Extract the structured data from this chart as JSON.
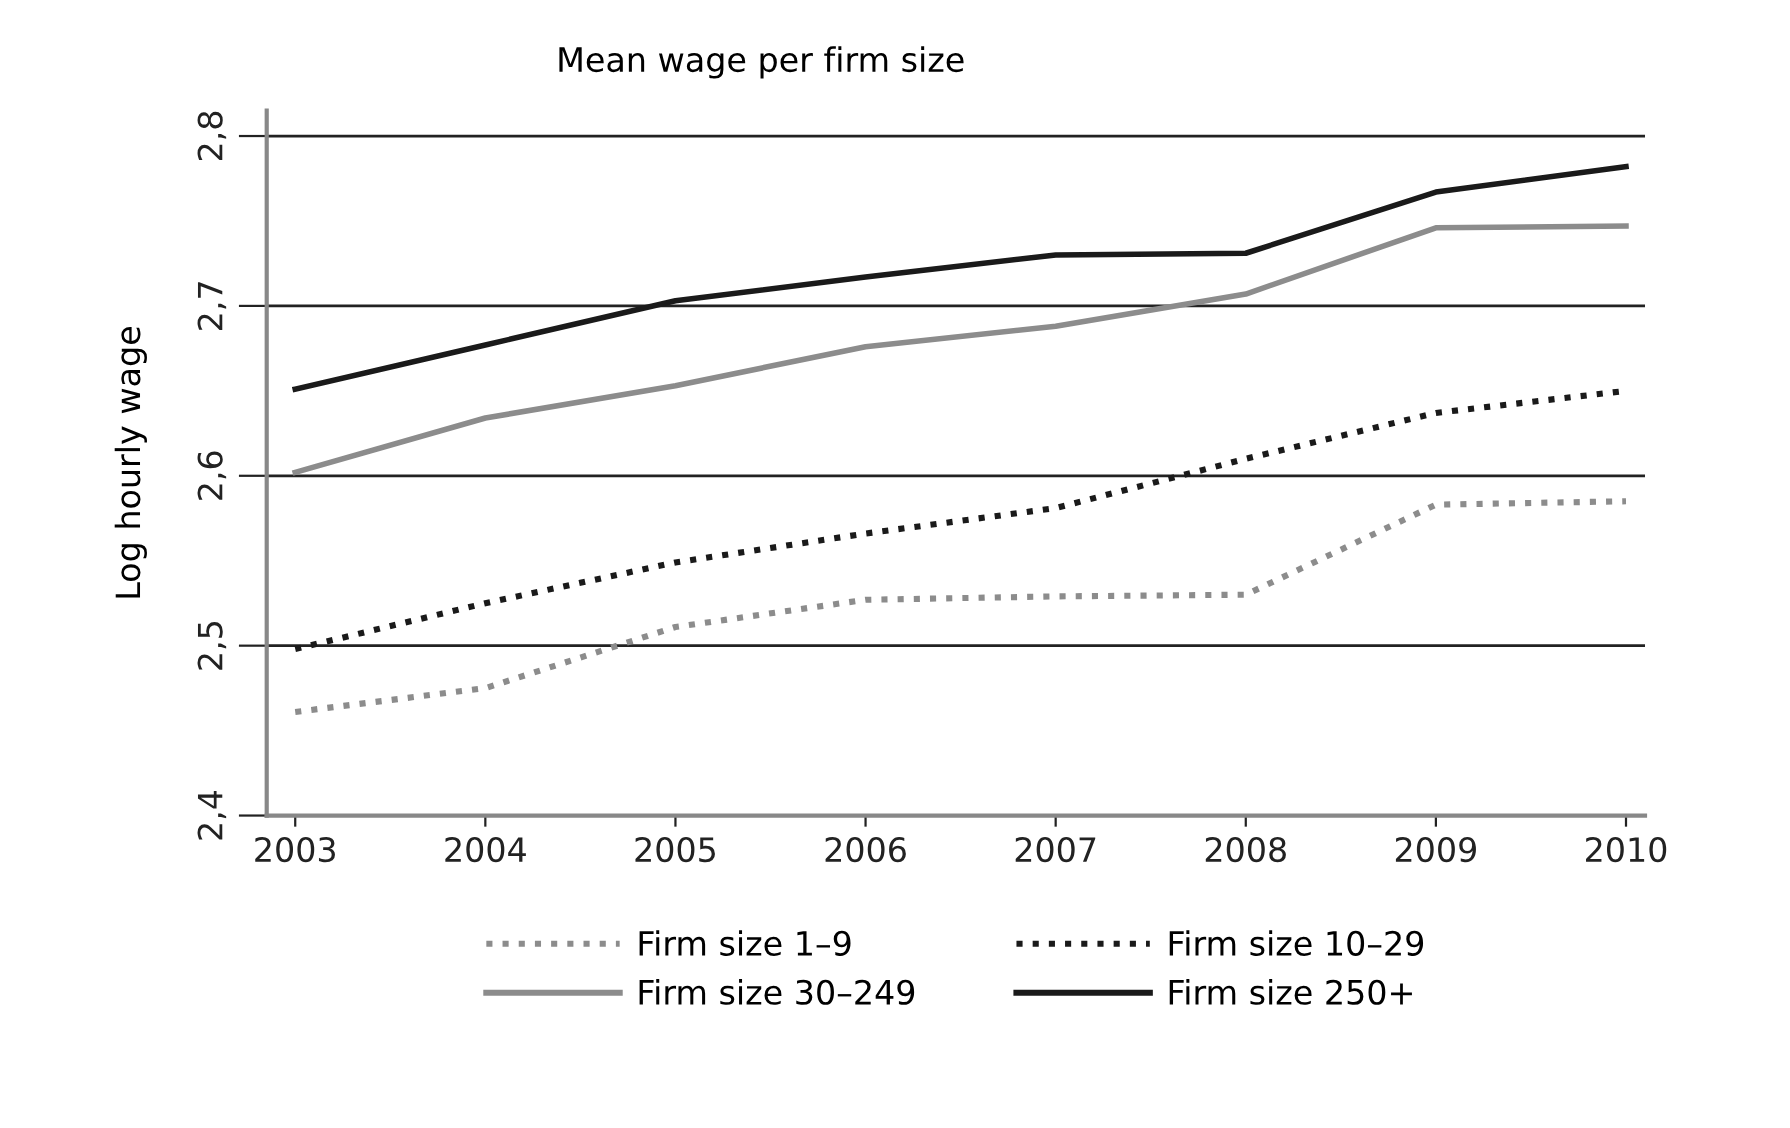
{
  "chart_data": {
    "type": "line",
    "title": "Mean wage per firm size",
    "ylabel": "Log hourly wage",
    "x": [
      2003,
      2004,
      2005,
      2006,
      2007,
      2008,
      2009,
      2010
    ],
    "xlim": [
      2002.85,
      2010.1
    ],
    "xticks": [
      2003,
      2004,
      2005,
      2006,
      2007,
      2008,
      2009,
      2010
    ],
    "ylim": [
      2.4,
      2.815
    ],
    "yticks": [
      {
        "value": 2.4,
        "label": "2,4"
      },
      {
        "value": 2.5,
        "label": "2,5"
      },
      {
        "value": 2.6,
        "label": "2,6"
      },
      {
        "value": 2.7,
        "label": "2,7"
      },
      {
        "value": 2.8,
        "label": "2,8"
      }
    ],
    "grid": "y",
    "legend": "bottom",
    "marker": "none",
    "series": [
      {
        "name": "Firm size 1–9",
        "color": "#8c8c8c",
        "line_style": "dotted",
        "values": [
          2.461,
          2.475,
          2.511,
          2.527,
          2.529,
          2.53,
          2.583,
          2.585
        ]
      },
      {
        "name": "Firm size 10–29",
        "color": "#1a1a1a",
        "line_style": "dotted",
        "values": [
          2.498,
          2.525,
          2.549,
          2.566,
          2.581,
          2.61,
          2.637,
          2.65
        ]
      },
      {
        "name": "Firm size 30–249",
        "color": "#8c8c8c",
        "line_style": "solid",
        "values": [
          2.602,
          2.634,
          2.653,
          2.676,
          2.688,
          2.707,
          2.746,
          2.747
        ]
      },
      {
        "name": "Firm size 250+",
        "color": "#1a1a1a",
        "line_style": "solid",
        "values": [
          2.651,
          2.677,
          2.703,
          2.717,
          2.73,
          2.731,
          2.767,
          2.782
        ]
      }
    ]
  }
}
